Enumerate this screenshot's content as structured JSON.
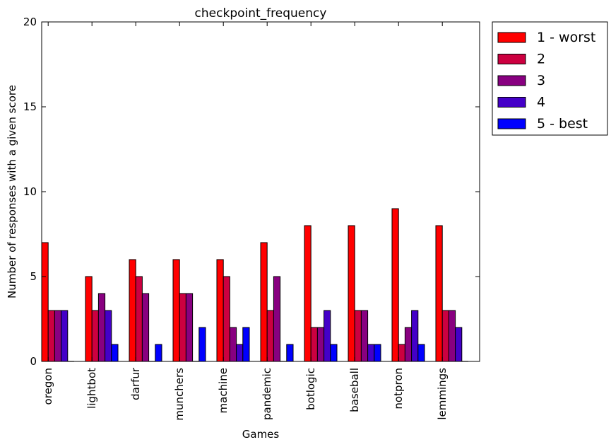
{
  "chart_data": {
    "type": "bar",
    "title": "checkpoint_frequency",
    "xlabel": "Games",
    "ylabel": "Number of responses with a given score",
    "ylim": [
      0,
      20
    ],
    "yticks": [
      0,
      5,
      10,
      15,
      20
    ],
    "grid": false,
    "legend_position": "outside-top-right",
    "categories": [
      "oregon",
      "lightbot",
      "darfur",
      "munchers",
      "machine",
      "pandemic",
      "botlogic",
      "baseball",
      "notpron",
      "lemmings"
    ],
    "series": [
      {
        "name": "1 - worst",
        "color": "#ff0000",
        "values": [
          7,
          5,
          6,
          6,
          6,
          7,
          8,
          8,
          9,
          8
        ]
      },
      {
        "name": "2",
        "color": "#cc0040",
        "values": [
          3,
          3,
          5,
          4,
          5,
          3,
          2,
          3,
          1,
          3
        ]
      },
      {
        "name": "3",
        "color": "#880080",
        "values": [
          3,
          4,
          4,
          4,
          2,
          5,
          2,
          3,
          2,
          3
        ]
      },
      {
        "name": "4",
        "color": "#4400c8",
        "values": [
          3,
          3,
          0,
          0,
          1,
          0,
          3,
          1,
          3,
          2
        ]
      },
      {
        "name": "5 - best",
        "color": "#0000ff",
        "values": [
          0,
          1,
          1,
          2,
          2,
          1,
          1,
          1,
          1,
          0
        ]
      }
    ]
  }
}
